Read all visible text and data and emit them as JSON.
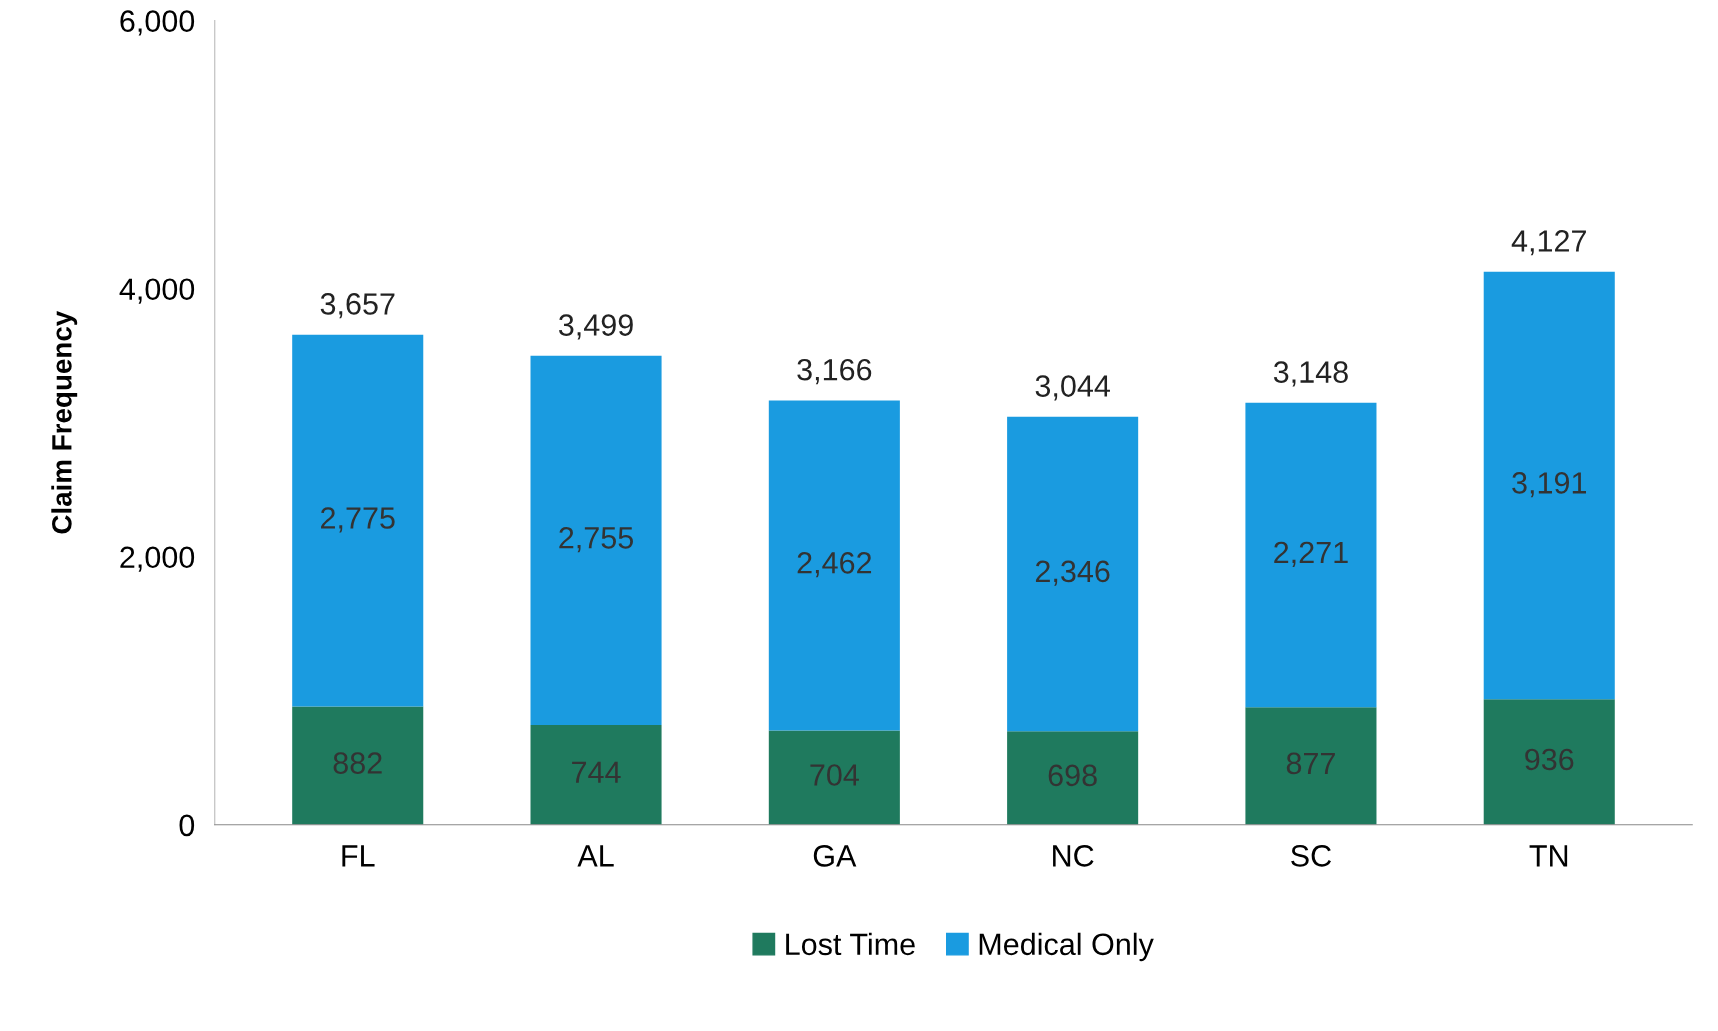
{
  "chart_data": {
    "type": "bar",
    "stacked": true,
    "ylabel": "Claim Frequency",
    "categories": [
      "FL",
      "AL",
      "GA",
      "NC",
      "SC",
      "TN"
    ],
    "series": [
      {
        "name": "Lost Time",
        "color": "#1f7a5e",
        "values": [
          882,
          744,
          704,
          698,
          877,
          936
        ]
      },
      {
        "name": "Medical Only",
        "color": "#1a9be0",
        "values": [
          2775,
          2755,
          2462,
          2346,
          2271,
          3191
        ]
      }
    ],
    "value_labels": [
      [
        "882",
        "744",
        "704",
        "698",
        "877",
        "936"
      ],
      [
        "2,775",
        "2,755",
        "2,462",
        "2,346",
        "2,271",
        "3,191"
      ]
    ],
    "totals": [
      "3,657",
      "3,499",
      "3,166",
      "3,044",
      "3,148",
      "4,127"
    ],
    "ylim": [
      0,
      6000
    ],
    "yticks": [
      {
        "value": 0,
        "label": "0"
      },
      {
        "value": 2000,
        "label": "2,000"
      },
      {
        "value": 4000,
        "label": "4,000"
      },
      {
        "value": 6000,
        "label": "6,000"
      }
    ],
    "grid": false,
    "legend": "bottom"
  }
}
